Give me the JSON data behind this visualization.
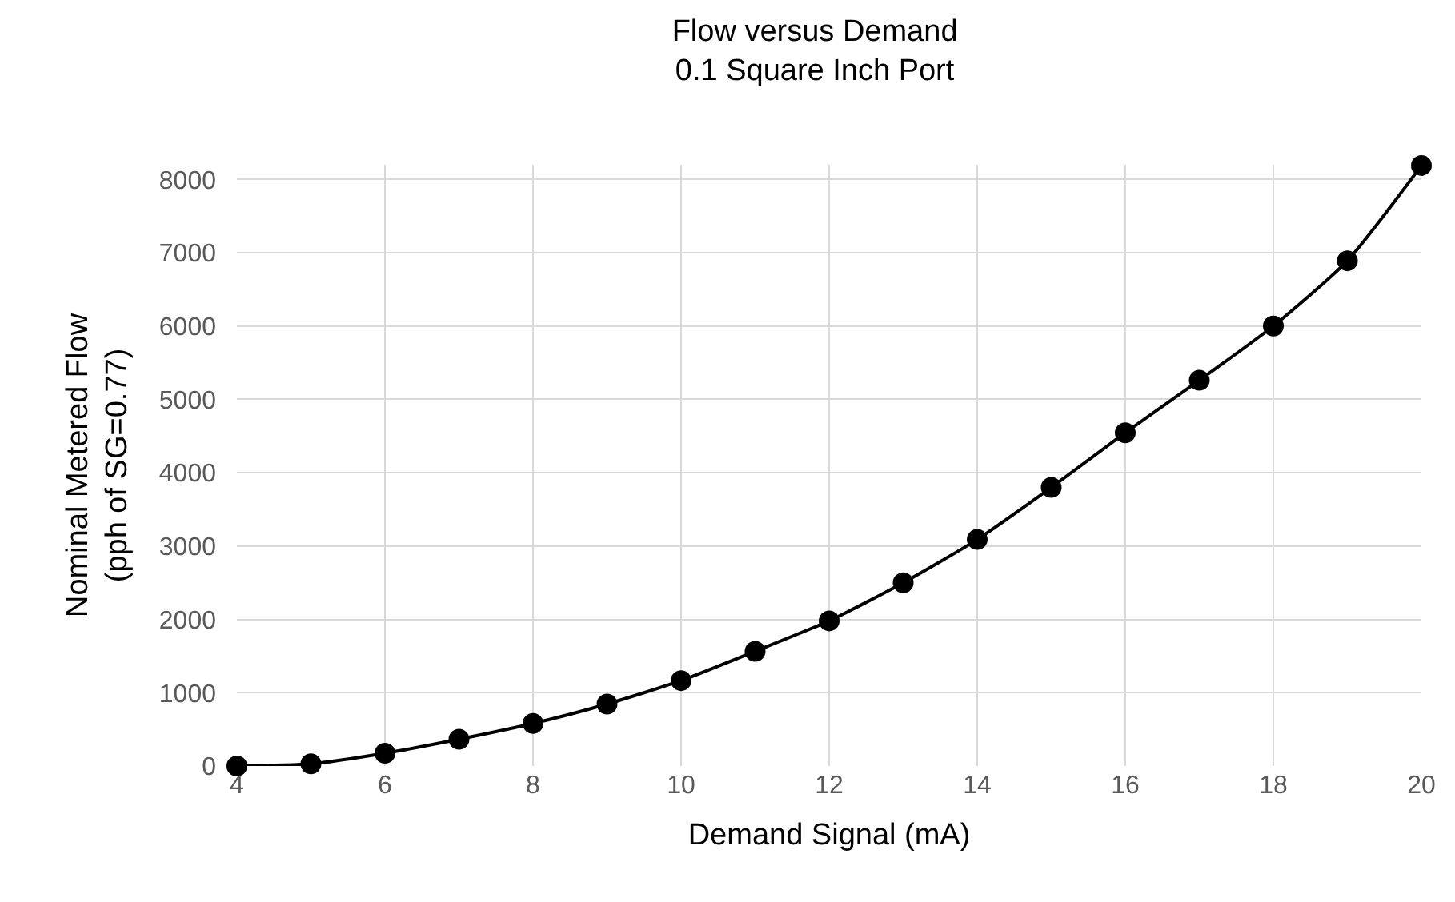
{
  "chart_data": {
    "type": "line",
    "title": "Flow versus Demand",
    "subtitle": "0.1 Square Inch Port",
    "xlabel": "Demand Signal (mA)",
    "ylabel": "Nominal Metered Flow\n(pph of SG=0.77)",
    "x": [
      4,
      5,
      6,
      7,
      8,
      9,
      10,
      11,
      12,
      13,
      14,
      15,
      16,
      17,
      18,
      19,
      20
    ],
    "series": [
      {
        "color": "#000000",
        "values": [
          0,
          30,
          175,
          365,
          580,
          845,
          1165,
          1565,
          1980,
          2500,
          3090,
          3800,
          4545,
          5260,
          6000,
          6890,
          8190
        ]
      }
    ],
    "xlim": [
      4,
      20
    ],
    "xticks": [
      4,
      6,
      8,
      10,
      12,
      14,
      16,
      18,
      20
    ],
    "ylim": [
      0,
      8200
    ],
    "yticks": [
      0,
      1000,
      2000,
      3000,
      4000,
      5000,
      6000,
      7000,
      8000
    ],
    "grid": true,
    "legend": false,
    "marker": "circle",
    "line_style": "solid"
  }
}
